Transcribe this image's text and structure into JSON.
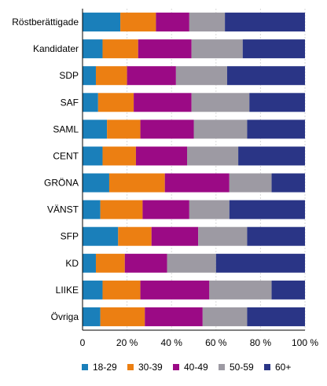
{
  "chart_data": {
    "type": "bar",
    "orientation": "horizontal",
    "stacked": "percent",
    "categories": [
      "Röstberättigade",
      "Kandidater",
      "SDP",
      "SAF",
      "SAML",
      "CENT",
      "GRÖNA",
      "VÄNST",
      "SFP",
      "KD",
      "LIIKE",
      "Övriga"
    ],
    "series": [
      {
        "name": "18-29",
        "color": "#1a7fba",
        "values": [
          17,
          9,
          6,
          7,
          11,
          9,
          12,
          8,
          16,
          6,
          9,
          8
        ]
      },
      {
        "name": "30-39",
        "color": "#ec7f12",
        "values": [
          16,
          16,
          14,
          16,
          15,
          15,
          25,
          19,
          15,
          13,
          17,
          20
        ]
      },
      {
        "name": "40-49",
        "color": "#9b0a85",
        "values": [
          15,
          24,
          22,
          26,
          24,
          23,
          29,
          21,
          21,
          19,
          31,
          26
        ]
      },
      {
        "name": "50-59",
        "color": "#9d9aa3",
        "values": [
          16,
          23,
          23,
          26,
          24,
          23,
          19,
          18,
          22,
          22,
          28,
          20
        ]
      },
      {
        "name": "60+",
        "color": "#2a3586",
        "values": [
          36,
          28,
          35,
          25,
          26,
          30,
          15,
          34,
          26,
          40,
          15,
          26
        ]
      }
    ],
    "x_ticks": [
      "0",
      "20 %",
      "40 %",
      "60 %",
      "80 %",
      "100 %"
    ],
    "xlim": [
      0,
      100
    ],
    "grid": "vertical",
    "legend_position": "bottom"
  }
}
